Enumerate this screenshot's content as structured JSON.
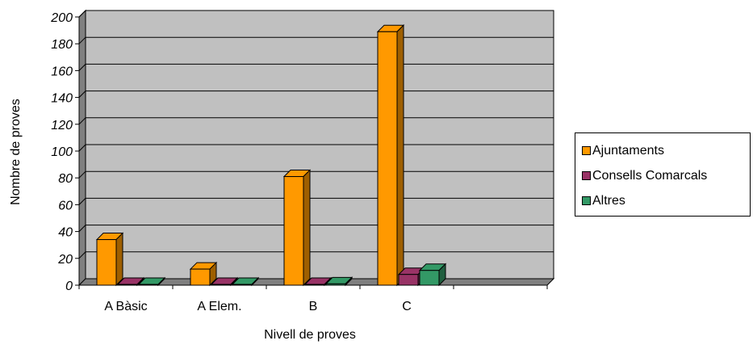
{
  "chart_data": {
    "type": "bar",
    "title": "",
    "xlabel": "Nivell de proves",
    "ylabel": "Nombre de proves",
    "categories": [
      "A Bàsic",
      "A Elem.",
      "B",
      "C",
      ""
    ],
    "ylim": [
      0,
      200
    ],
    "yticks": [
      0,
      20,
      40,
      60,
      80,
      100,
      120,
      140,
      160,
      180,
      200
    ],
    "grid": true,
    "legend_position": "right",
    "series": [
      {
        "name": "Ajuntaments",
        "color": "#FF9900",
        "values": [
          34,
          12,
          81,
          189,
          null
        ]
      },
      {
        "name": "Consells Comarcals",
        "color": "#993366",
        "values": [
          0,
          0,
          0,
          8,
          null
        ]
      },
      {
        "name": "Altres",
        "color": "#339966",
        "values": [
          0,
          0,
          1,
          11,
          null
        ]
      }
    ]
  }
}
